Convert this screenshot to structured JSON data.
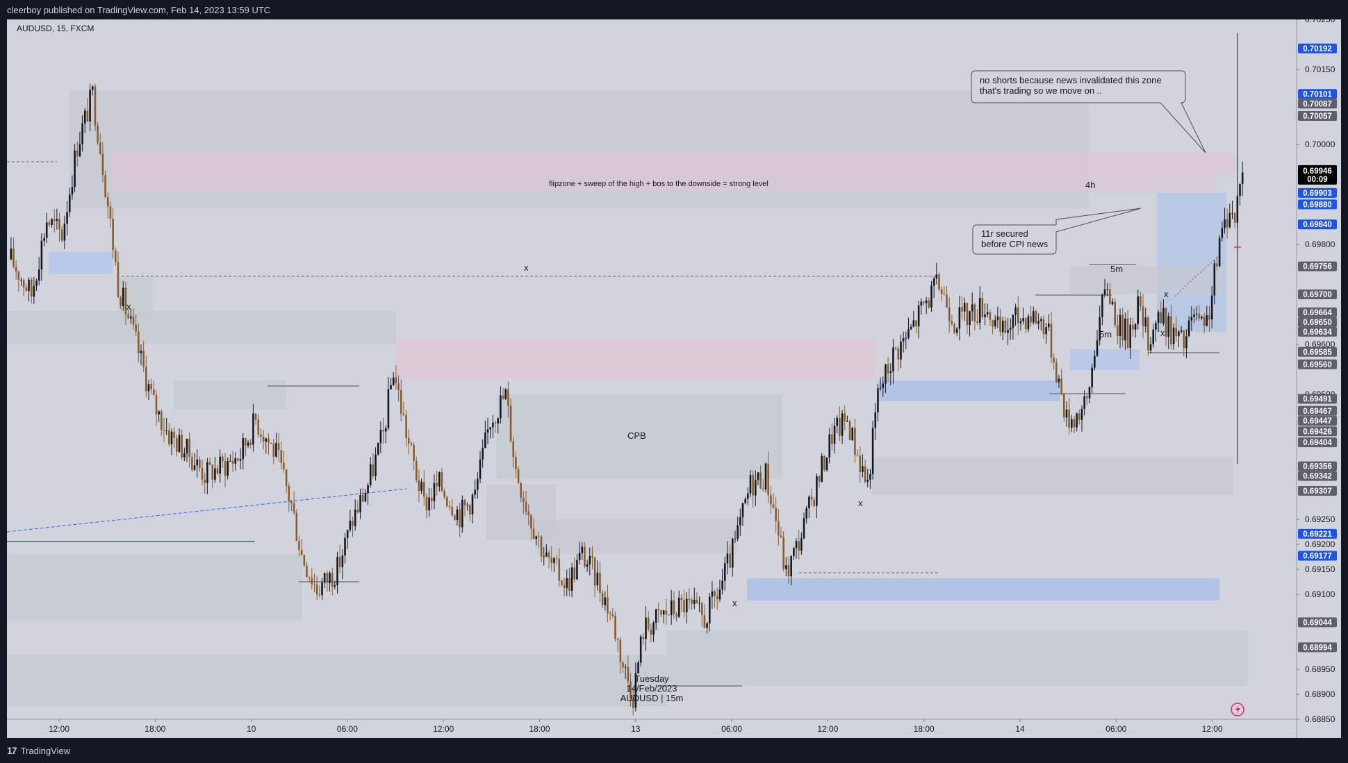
{
  "header": {
    "publisher": "cleerboy published on TradingView.com, Feb 14, 2023 13:59 UTC"
  },
  "symbol_info": "AUDUSD, 15, FXCM",
  "footer": {
    "brand": "TradingView"
  },
  "annotations": {
    "flipzone": "flipzone + sweep of the high + bos to the downside = strong level",
    "tf_4h": "4h",
    "tf_5m_a": "5m",
    "tf_5m_b": "5m",
    "cpb": "CPB",
    "x_mark": "x",
    "note_news_line1": "no shorts because news invalidated this zone",
    "note_news_line2": "that's trading so we move on ..",
    "note_11r_line1": "11r secured",
    "note_11r_line2": "before CPI news",
    "date_line1": "Tuesday",
    "date_line2": "14/Feb/2023",
    "date_line3": "AUDUSD | 15m"
  },
  "colors": {
    "bull_candle": "#131722",
    "bear_candle": "#8b5a2b",
    "supply_zone": "#e2c5d4",
    "demand_zone": "#a9bfe8",
    "gray_zone": "#c4c7cf",
    "blue_tag": "#1e53e5",
    "gray_tag": "#5d606b",
    "price_tag": "#000000"
  },
  "chart_data": {
    "type": "candlestick",
    "symbol": "AUDUSD",
    "timeframe": "15",
    "broker": "FXCM",
    "ylim": [
      0.6885,
      0.7025
    ],
    "y_ticks": [
      "0.70250",
      "0.70150",
      "0.70000",
      "0.69800",
      "0.69600",
      "0.69500",
      "0.69250",
      "0.69200",
      "0.69150",
      "0.69100",
      "0.68950",
      "0.68900",
      "0.68850"
    ],
    "x_ticks": [
      "12:00",
      "18:00",
      "10",
      "06:00",
      "12:00",
      "18:00",
      "13",
      "06:00",
      "12:00",
      "18:00",
      "14",
      "06:00",
      "12:00"
    ],
    "current_price": "0.69946",
    "countdown": "00:09",
    "price_tags": [
      {
        "value": "0.70192",
        "style": "blue"
      },
      {
        "value": "0.70101",
        "style": "blue"
      },
      {
        "value": "0.70087",
        "style": "gray"
      },
      {
        "value": "0.70057",
        "style": "gray"
      },
      {
        "value": "0.69903",
        "style": "blue"
      },
      {
        "value": "0.69880",
        "style": "blue"
      },
      {
        "value": "0.69840",
        "style": "blue"
      },
      {
        "value": "0.69756",
        "style": "gray"
      },
      {
        "value": "0.69700",
        "style": "gray"
      },
      {
        "value": "0.69664",
        "style": "gray"
      },
      {
        "value": "0.69650",
        "style": "gray"
      },
      {
        "value": "0.69634",
        "style": "gray"
      },
      {
        "value": "0.69585",
        "style": "gray"
      },
      {
        "value": "0.69560",
        "style": "gray"
      },
      {
        "value": "0.69491",
        "style": "gray"
      },
      {
        "value": "0.69467",
        "style": "gray"
      },
      {
        "value": "0.69447",
        "style": "gray"
      },
      {
        "value": "0.69426",
        "style": "gray"
      },
      {
        "value": "0.69404",
        "style": "gray"
      },
      {
        "value": "0.69356",
        "style": "gray"
      },
      {
        "value": "0.69342",
        "style": "gray"
      },
      {
        "value": "0.69307",
        "style": "gray"
      },
      {
        "value": "0.69221",
        "style": "blue"
      },
      {
        "value": "0.69177",
        "style": "blue"
      },
      {
        "value": "0.69044",
        "style": "gray"
      },
      {
        "value": "0.68994",
        "style": "gray"
      }
    ],
    "path": [
      [
        0,
        0.6977
      ],
      [
        8,
        0.697
      ],
      [
        14,
        0.6985
      ],
      [
        20,
        0.6982
      ],
      [
        26,
        0.7
      ],
      [
        32,
        0.701
      ],
      [
        36,
        0.6996
      ],
      [
        42,
        0.6972
      ],
      [
        48,
        0.6962
      ],
      [
        56,
        0.6948
      ],
      [
        62,
        0.6942
      ],
      [
        70,
        0.6938
      ],
      [
        76,
        0.6934
      ],
      [
        84,
        0.6936
      ],
      [
        90,
        0.6938
      ],
      [
        96,
        0.6945
      ],
      [
        104,
        0.6938
      ],
      [
        110,
        0.6928
      ],
      [
        114,
        0.6918
      ],
      [
        120,
        0.6911
      ],
      [
        128,
        0.6915
      ],
      [
        134,
        0.6925
      ],
      [
        140,
        0.6932
      ],
      [
        146,
        0.6942
      ],
      [
        150,
        0.6955
      ],
      [
        156,
        0.694
      ],
      [
        162,
        0.6928
      ],
      [
        168,
        0.6932
      ],
      [
        176,
        0.6926
      ],
      [
        182,
        0.693
      ],
      [
        188,
        0.6945
      ],
      [
        194,
        0.695
      ],
      [
        198,
        0.6935
      ],
      [
        204,
        0.6925
      ],
      [
        210,
        0.6917
      ],
      [
        218,
        0.6912
      ],
      [
        224,
        0.6918
      ],
      [
        230,
        0.6913
      ],
      [
        236,
        0.6905
      ],
      [
        240,
        0.6896
      ],
      [
        244,
        0.689
      ],
      [
        248,
        0.6903
      ],
      [
        256,
        0.6906
      ],
      [
        264,
        0.6908
      ],
      [
        272,
        0.6905
      ],
      [
        278,
        0.6911
      ],
      [
        284,
        0.692
      ],
      [
        290,
        0.6932
      ],
      [
        296,
        0.6934
      ],
      [
        300,
        0.6925
      ],
      [
        304,
        0.6914
      ],
      [
        310,
        0.6922
      ],
      [
        316,
        0.6932
      ],
      [
        322,
        0.6942
      ],
      [
        328,
        0.6945
      ],
      [
        332,
        0.6938
      ],
      [
        336,
        0.6932
      ],
      [
        340,
        0.695
      ],
      [
        346,
        0.6958
      ],
      [
        352,
        0.6962
      ],
      [
        358,
        0.6968
      ],
      [
        364,
        0.6972
      ],
      [
        370,
        0.6965
      ],
      [
        376,
        0.6966
      ],
      [
        382,
        0.6968
      ],
      [
        388,
        0.6962
      ],
      [
        394,
        0.6965
      ],
      [
        400,
        0.6966
      ],
      [
        406,
        0.6964
      ],
      [
        410,
        0.6955
      ],
      [
        414,
        0.6945
      ],
      [
        418,
        0.6946
      ],
      [
        422,
        0.6948
      ],
      [
        426,
        0.6963
      ],
      [
        430,
        0.6972
      ],
      [
        434,
        0.6964
      ],
      [
        438,
        0.6962
      ],
      [
        442,
        0.6968
      ],
      [
        446,
        0.6961
      ],
      [
        450,
        0.6966
      ],
      [
        456,
        0.6962
      ],
      [
        460,
        0.696
      ],
      [
        464,
        0.6966
      ],
      [
        468,
        0.6962
      ],
      [
        470,
        0.6967
      ],
      [
        474,
        0.698
      ],
      [
        478,
        0.6988
      ],
      [
        480,
        0.6984
      ],
      [
        482,
        0.6994
      ]
    ],
    "n_candles": 484
  }
}
